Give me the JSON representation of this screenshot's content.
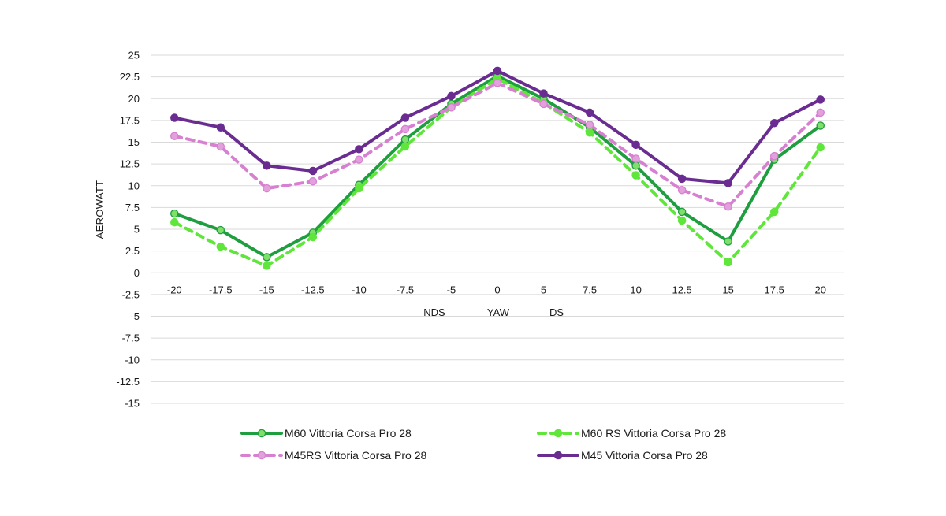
{
  "chart_data": {
    "type": "line",
    "title": "",
    "ylabel": "AEROWATT",
    "xlabel": "YAW",
    "x_annotations": [
      "NDS",
      "YAW",
      "DS"
    ],
    "ylim": [
      -15,
      25
    ],
    "y_ticks": [
      "25",
      "22.5",
      "20",
      "17.5",
      "15",
      "12.5",
      "10",
      "7.5",
      "5",
      "2.5",
      "0",
      "-2.5",
      "-5",
      "-7.5",
      "-10",
      "-12.5",
      "-15"
    ],
    "categories": [
      "-20",
      "-17.5",
      "-15",
      "-12.5",
      "-10",
      "-7.5",
      "-5",
      "0",
      "5",
      "7.5",
      "10",
      "12.5",
      "15",
      "17.5",
      "20"
    ],
    "grid": true,
    "legend_position": "bottom",
    "series": [
      {
        "name": "M60 Vittoria Corsa Pro 28",
        "color": "#1e9e3e",
        "marker_fill": "#7ee06a",
        "dashed": false,
        "values": [
          6.8,
          4.9,
          1.8,
          4.6,
          10.1,
          15.3,
          19.4,
          22.6,
          20.0,
          16.7,
          12.3,
          7.0,
          3.6,
          13.0,
          16.9
        ]
      },
      {
        "name": "M60 RS Vittoria Corsa Pro 28",
        "color": "#5fe63a",
        "marker_fill": "#5fe63a",
        "dashed": true,
        "values": [
          5.8,
          3.0,
          0.8,
          4.1,
          9.7,
          14.5,
          19.0,
          22.3,
          19.5,
          16.1,
          11.2,
          6.0,
          1.2,
          7.0,
          14.4
        ]
      },
      {
        "name": "M45RS Vittoria Corsa Pro 28",
        "color": "#d77fd0",
        "marker_fill": "#e2a0dc",
        "dashed": true,
        "values": [
          15.7,
          14.5,
          9.7,
          10.5,
          13.0,
          16.5,
          19.0,
          21.8,
          19.4,
          17.0,
          13.1,
          9.5,
          7.6,
          13.4,
          18.4
        ]
      },
      {
        "name": "M45 Vittoria Corsa Pro 28",
        "color": "#6a2c91",
        "marker_fill": "#6a2c91",
        "dashed": false,
        "values": [
          17.8,
          16.7,
          12.3,
          11.7,
          14.2,
          17.8,
          20.3,
          23.2,
          20.6,
          18.4,
          14.7,
          10.8,
          10.3,
          17.2,
          19.9
        ]
      }
    ]
  }
}
